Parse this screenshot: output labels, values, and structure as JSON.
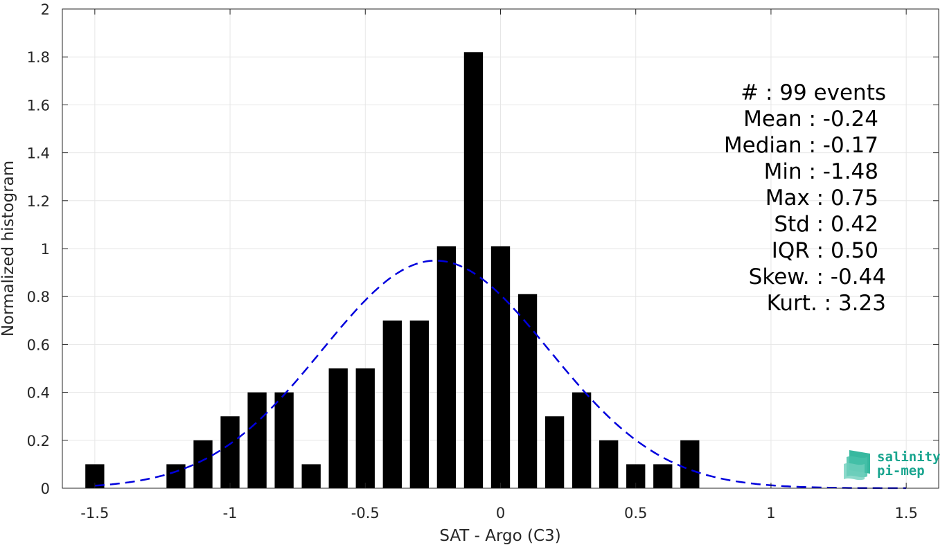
{
  "chart_data": {
    "type": "bar",
    "title": "",
    "xlabel": "SAT - Argo (C3)",
    "ylabel": "Normalized histogram",
    "xlim": [
      -1.62,
      1.62
    ],
    "ylim": [
      0,
      2
    ],
    "xticks": [
      -1.5,
      -1,
      -0.5,
      0,
      0.5,
      1,
      1.5
    ],
    "xtick_labels": [
      "-1.5",
      "-1",
      "-0.5",
      "0",
      "0.5",
      "1",
      "1.5"
    ],
    "yticks": [
      0,
      0.2,
      0.4,
      0.6,
      0.8,
      1,
      1.2,
      1.4,
      1.6,
      1.8,
      2
    ],
    "ytick_labels": [
      "0",
      "0.2",
      "0.4",
      "0.6",
      "0.8",
      "1",
      "1.2",
      "1.4",
      "1.6",
      "1.8",
      "2"
    ],
    "grid": true,
    "bar_width": 0.07,
    "bar_color": "#000000",
    "bars": [
      {
        "x": -1.5,
        "y": 0.1
      },
      {
        "x": -1.2,
        "y": 0.1
      },
      {
        "x": -1.1,
        "y": 0.2
      },
      {
        "x": -1.0,
        "y": 0.3
      },
      {
        "x": -0.9,
        "y": 0.4
      },
      {
        "x": -0.8,
        "y": 0.4
      },
      {
        "x": -0.7,
        "y": 0.1
      },
      {
        "x": -0.6,
        "y": 0.5
      },
      {
        "x": -0.5,
        "y": 0.5
      },
      {
        "x": -0.4,
        "y": 0.7
      },
      {
        "x": -0.3,
        "y": 0.7
      },
      {
        "x": -0.2,
        "y": 1.01
      },
      {
        "x": -0.1,
        "y": 1.82
      },
      {
        "x": 0.0,
        "y": 1.01
      },
      {
        "x": 0.1,
        "y": 0.81
      },
      {
        "x": 0.2,
        "y": 0.3
      },
      {
        "x": 0.3,
        "y": 0.4
      },
      {
        "x": 0.4,
        "y": 0.2
      },
      {
        "x": 0.5,
        "y": 0.1
      },
      {
        "x": 0.6,
        "y": 0.1
      },
      {
        "x": 0.7,
        "y": 0.2
      }
    ],
    "fit_curve": {
      "style": "dashed",
      "color": "#0000dd",
      "x_range": [
        -1.5,
        1.5
      ],
      "mean": -0.24,
      "std": 0.42
    },
    "stats": [
      "#  : 99 events",
      "Mean : -0.24",
      "Median : -0.17",
      "Min : -1.48",
      "Max : 0.75",
      "Std : 0.42",
      "IQR : 0.50",
      "Skew. : -0.44",
      "Kurt. : 3.23"
    ]
  },
  "logo": {
    "line1": "salinity",
    "line2": "pi-mep",
    "color": "#1aa58f"
  }
}
